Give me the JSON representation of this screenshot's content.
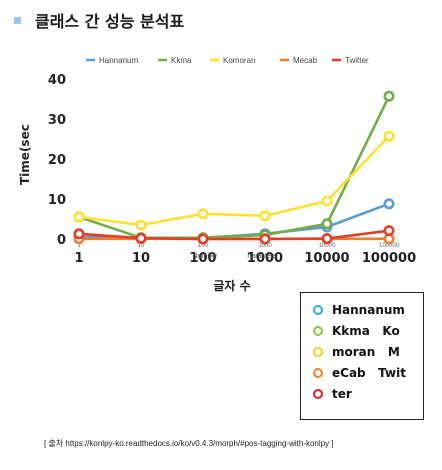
{
  "page": {
    "title": "클래스 간 성능 분석표",
    "source": "[ 출처 https://konlpy-ko.readthedocs.io/ko/v0.4.3/morph/#pos-tagging-with-konlpy ]"
  },
  "chart_data": {
    "type": "line",
    "title": "",
    "xlabel": "글자 수",
    "ylabel": "Time(sec",
    "x_scale": "log",
    "categories": [
      "1",
      "10",
      "100",
      "1000",
      "10000",
      "100000"
    ],
    "x_tick_labels": [
      "1",
      "10",
      "100",
      "1000",
      "10000",
      "100000"
    ],
    "x_small_tick_labels": [
      "1",
      "10",
      "100",
      "1000",
      "10000",
      "100000"
    ],
    "x_overlay_labels": [
      "Number",
      "haracters"
    ],
    "y_tick_labels": [
      "0",
      "10",
      "20",
      "30",
      "40"
    ],
    "ylim": [
      0,
      40
    ],
    "grid": false,
    "series": [
      {
        "name": "Hannanum",
        "color": "#5b9bd5",
        "values": [
          0.5,
          0.3,
          0.3,
          1.3,
          3.0,
          8.8
        ]
      },
      {
        "name": "Kkma",
        "color": "#70ad47",
        "values": [
          5.5,
          0.3,
          0.3,
          1.0,
          3.8,
          35.7
        ]
      },
      {
        "name": "Komoran",
        "color": "#ffe135",
        "values": [
          5.5,
          3.5,
          6.3,
          5.8,
          9.5,
          25.7
        ]
      },
      {
        "name": "Mecab",
        "color": "#ed7d31",
        "values": [
          0.05,
          0.05,
          0.05,
          0.05,
          0.05,
          0.05
        ]
      },
      {
        "name": "Twitter",
        "color": "#e0402a",
        "values": [
          1.3,
          0.2,
          0.0,
          0.0,
          0.1,
          2.1
        ]
      }
    ],
    "legend": {
      "placement": "below-right",
      "items": [
        {
          "label": "Hannanum",
          "color": "#29abe2"
        },
        {
          "label": "Kkma   Ko",
          "color": "#8ac43f"
        },
        {
          "label": "moran   M",
          "color": "#f4d020"
        },
        {
          "label": "eCab   Twit",
          "color": "#f07f1f"
        },
        {
          "label": "ter",
          "color": "#e01f1f"
        }
      ]
    }
  }
}
